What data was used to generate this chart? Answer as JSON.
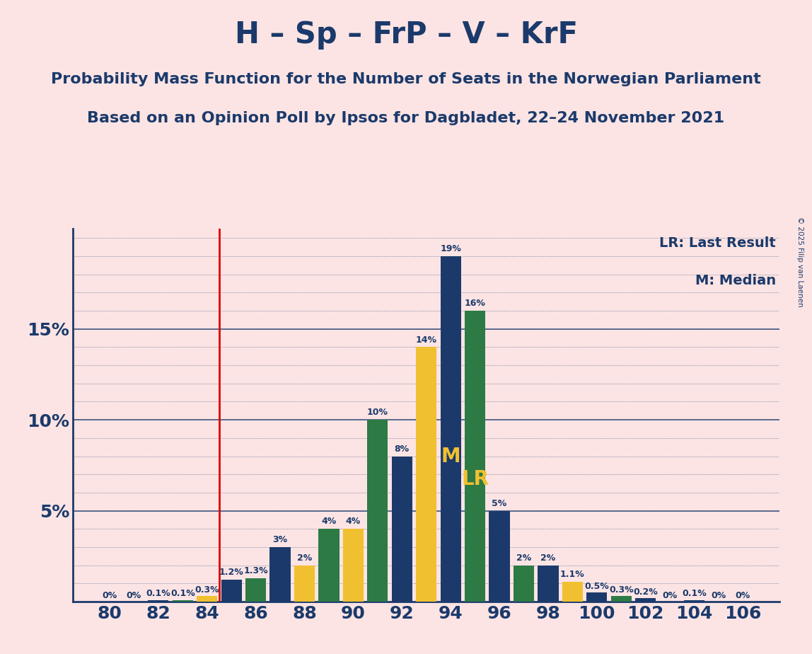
{
  "title": "H – Sp – FrP – V – KrF",
  "subtitle1": "Probability Mass Function for the Number of Seats in the Norwegian Parliament",
  "subtitle2": "Based on an Opinion Poll by Ipsos for Dagbladet, 22–24 November 2021",
  "copyright": "© 2025 Filip van Laenen",
  "background_color": "#fce4e4",
  "seats": [
    80,
    81,
    82,
    83,
    84,
    85,
    86,
    87,
    88,
    89,
    90,
    91,
    92,
    93,
    94,
    95,
    96,
    97,
    98,
    99,
    100,
    101,
    102,
    103,
    104,
    105,
    106
  ],
  "values": [
    0.0,
    0.0,
    0.1,
    0.1,
    0.3,
    1.2,
    1.3,
    3.0,
    2.0,
    4.0,
    4.0,
    10.0,
    8.0,
    14.0,
    19.0,
    16.0,
    5.0,
    2.0,
    2.0,
    1.1,
    0.5,
    0.3,
    0.2,
    0.0,
    0.1,
    0.0,
    0.0
  ],
  "bar_colors": [
    "#1b3a6b",
    "#1b3a6b",
    "#1b3a6b",
    "#2d7a45",
    "#f0c030",
    "#1b3a6b",
    "#2d7a45",
    "#1b3a6b",
    "#f0c030",
    "#2d7a45",
    "#f0c030",
    "#2d7a45",
    "#1b3a6b",
    "#f0c030",
    "#1b3a6b",
    "#2d7a45",
    "#1b3a6b",
    "#2d7a45",
    "#1b3a6b",
    "#f0c030",
    "#1b3a6b",
    "#2d7a45",
    "#1b3a6b",
    "#2d7a45",
    "#1b3a6b",
    "#f0c030",
    "#1b3a6b"
  ],
  "lr_seat": 95,
  "median_seat": 94,
  "vline_seat": 85,
  "ylim_max": 20.5,
  "title_color": "#1b3a6b",
  "vline_color": "#dd0000",
  "label_color_on_bar": "#f0c030",
  "title_fontsize": 30,
  "subtitle1_fontsize": 16,
  "subtitle2_fontsize": 16,
  "bar_label_fontsize": 9,
  "legend_fontsize": 14,
  "ytick_fontsize": 18,
  "xtick_fontsize": 18,
  "legend_lr": "LR: Last Result",
  "legend_m": "M: Median",
  "lr_text": "LR",
  "m_text": "M"
}
